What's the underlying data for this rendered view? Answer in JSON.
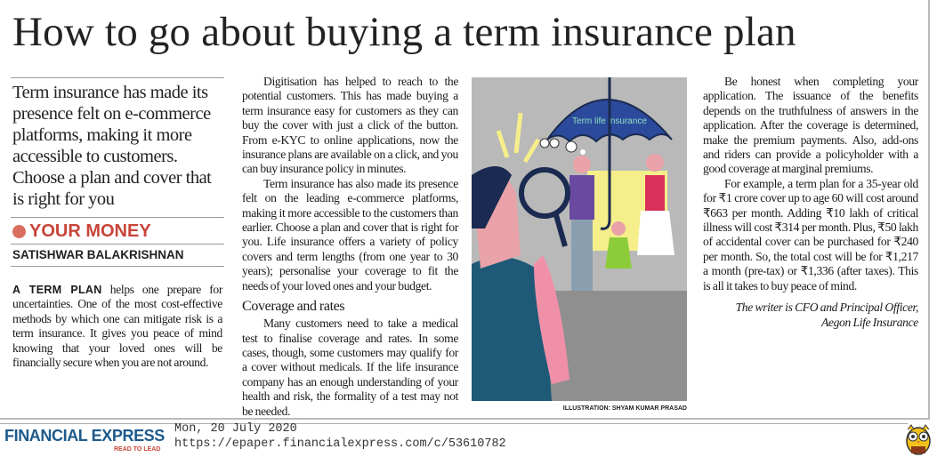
{
  "article": {
    "title": "How to go about buying a term insurance plan",
    "deck": "Term insurance has made its presence felt on e-commerce platforms, making it more accessible to customers. Choose a plan and cover that is right for you",
    "section": "YOUR MONEY",
    "byline": "SATISHWAR BALAKRISHNAN",
    "lead_in": "A TERM PLAN",
    "para1": " helps one prepare for uncertainties. One of the most cost-effective methods by which one can mitigate risk is a term insurance. It gives you peace of mind knowing that your loved ones will be financially secure when you are not around.",
    "para2": "Digitisation has helped to reach to the potential customers. This has made buying a term insurance easy for customers as they can buy the cover with just a click of the button. From e-KYC to online applications, now the insurance plans are available on a click, and you can buy insurance policy in minutes.",
    "para3": "Term insurance has also made its presence felt on the leading e-commerce platforms, making it more accessible to the customers than earlier. Choose a plan and cover that is right for you. Life insurance offers a variety of policy covers and term lengths (from one year to 30 years); personalise your coverage to fit the needs of your loved ones and your budget.",
    "subhead": "Coverage and rates",
    "para4": "Many customers need to take a medical test to finalise coverage and rates. In some cases, though, some customers may qualify for a cover without medicals. If the life insurance company has an enough understanding of your health and risk, the formality of a test may not be needed.",
    "para5": "Be honest when completing your application. The issuance of the benefits depends on the truthfulness of answers in the application. After the coverage is determined, make the premium payments. Also, add-ons and riders can provide a policyholder with a good coverage at marginal premiums.",
    "para6": "For example, a term plan for a 35-year old for ₹1 crore cover up to age 60 will cost around ₹663 per month. Adding ₹10 lakh of critical illness will cost ₹314 per month. Plus, ₹50 lakh of accidental cover can be purchased for ₹240 per month. So, the total cost will be for ₹1,217 a month (pre-tax) or ₹1,336 (after taxes). This is all it takes to buy peace of mind.",
    "signoff_1": "The writer is CFO and Principal Officer,",
    "signoff_2": "Aegon Life Insurance",
    "illustration_label": "Term life insurance",
    "illustration_credit": "ILLUSTRATION: SHYAM KUMAR PRASAD"
  },
  "footer": {
    "logo": "FINANCIAL EXPRESS",
    "tagline": "READ TO LEAD",
    "date": "Mon, 20 July 2020",
    "url": "https://epaper.financialexpress.com/c/53610782",
    "mascot_icon": "owl-icon"
  },
  "colors": {
    "accent": "#c8453a",
    "brand": "#1d5a8c",
    "umbrella": "#2b4a9c"
  }
}
